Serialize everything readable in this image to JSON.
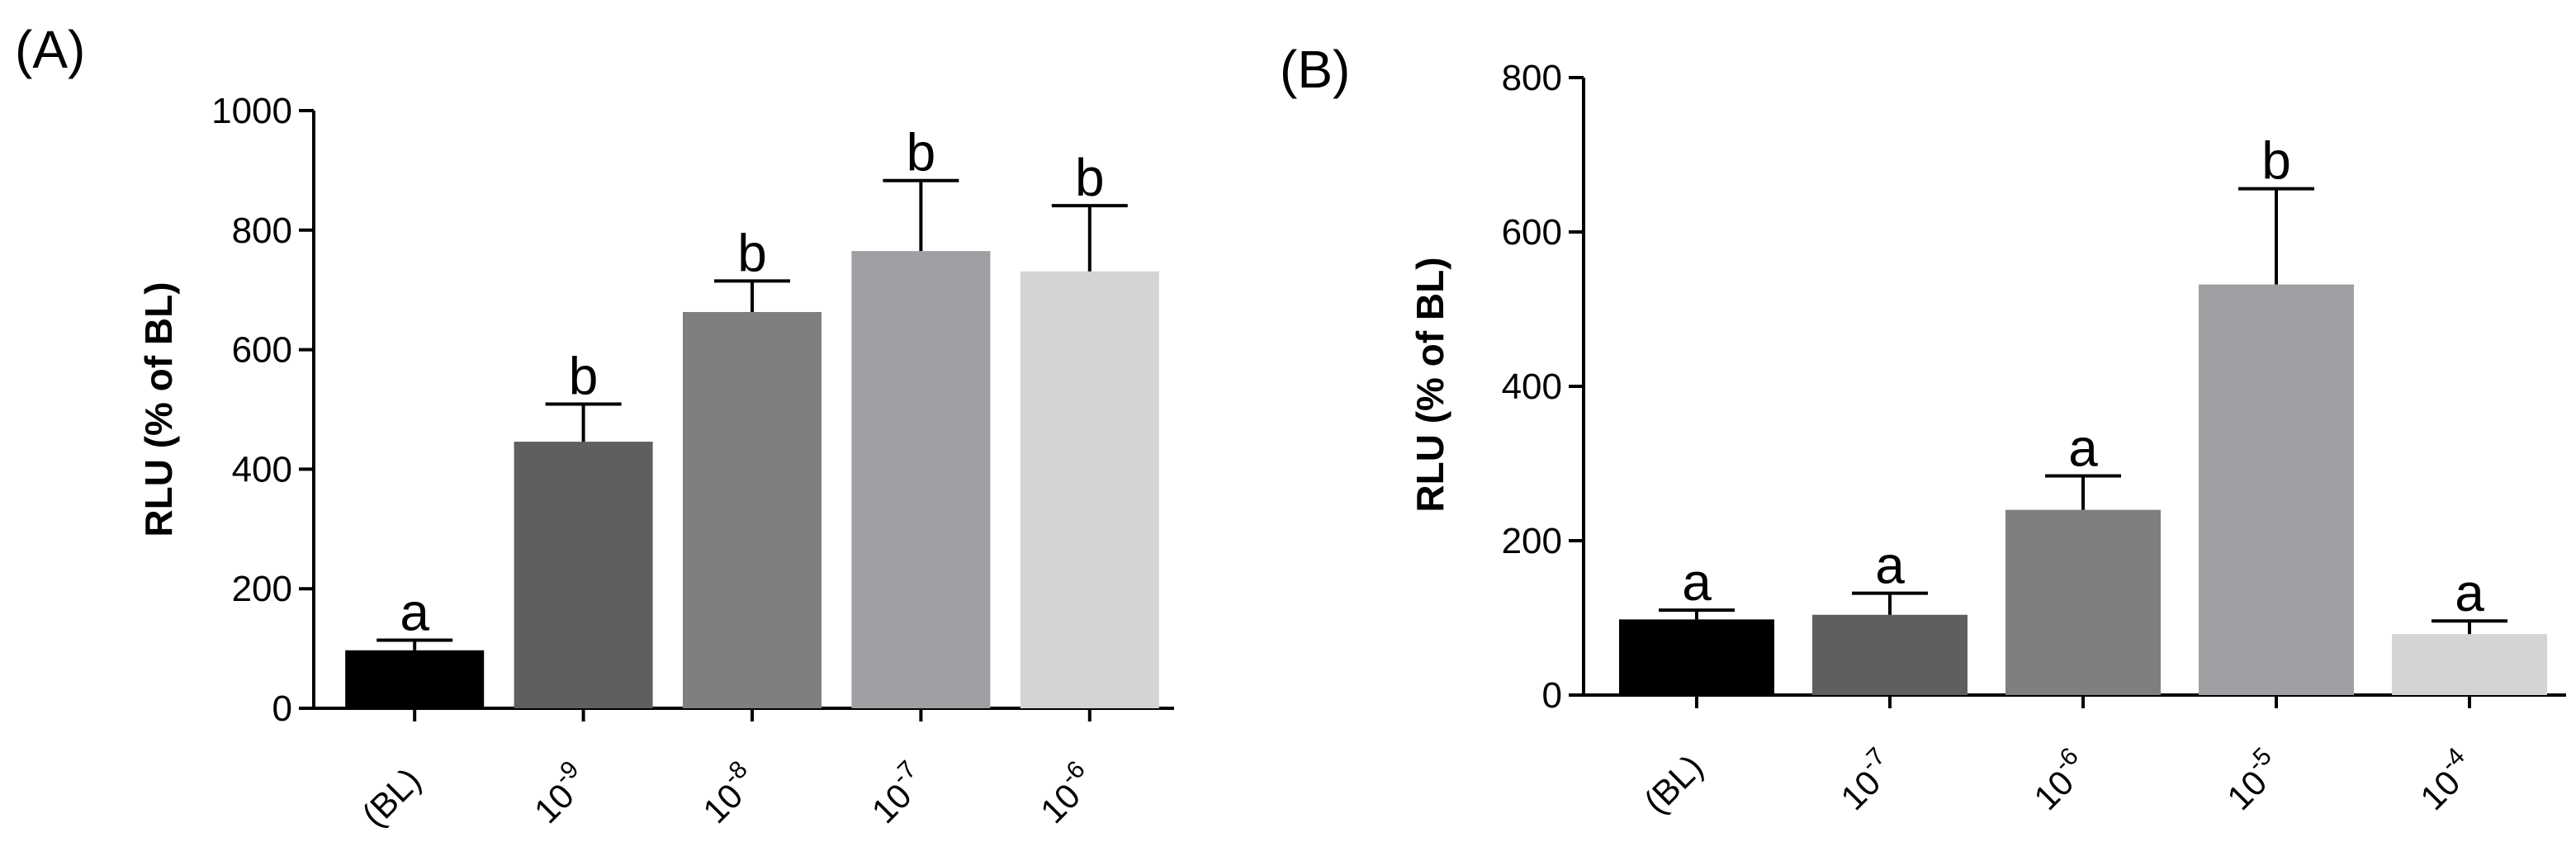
{
  "chart_data": [
    {
      "type": "bar",
      "panel_label": "(A)",
      "ylabel": "RLU (% of BL)",
      "xlabel": "",
      "ylim": [
        0,
        1000
      ],
      "yticks": [
        0,
        200,
        400,
        600,
        800,
        1000
      ],
      "categories": [
        {
          "base": "(BL)",
          "exp": ""
        },
        {
          "base": "10",
          "exp": "-9"
        },
        {
          "base": "10",
          "exp": "-8"
        },
        {
          "base": "10",
          "exp": "-7"
        },
        {
          "base": "10",
          "exp": "-6"
        }
      ],
      "values": [
        97,
        446,
        663,
        765,
        731
      ],
      "errors": [
        17,
        63,
        52,
        118,
        110
      ],
      "significance": [
        "a",
        "b",
        "b",
        "b",
        "b"
      ],
      "colors": [
        "#000000",
        "#5f5f5f",
        "#7f7f7f",
        "#a0a0a4",
        "#d4d4d4"
      ],
      "grid": false
    },
    {
      "type": "bar",
      "panel_label": "(B)",
      "ylabel": "RLU (% of BL)",
      "xlabel": "",
      "ylim": [
        0,
        800
      ],
      "yticks": [
        0,
        200,
        400,
        600,
        800
      ],
      "categories": [
        {
          "base": "(BL)",
          "exp": ""
        },
        {
          "base": "10",
          "exp": "-7"
        },
        {
          "base": "10",
          "exp": "-6"
        },
        {
          "base": "10",
          "exp": "-5"
        },
        {
          "base": "10",
          "exp": "-4"
        }
      ],
      "values": [
        98,
        104,
        240,
        532,
        79
      ],
      "errors": [
        12,
        28,
        44,
        124,
        17
      ],
      "significance": [
        "a",
        "a",
        "a",
        "b",
        "a"
      ],
      "colors": [
        "#000000",
        "#5f5f5f",
        "#7f7f7f",
        "#a0a0a4",
        "#d4d4d4"
      ],
      "grid": false
    }
  ]
}
